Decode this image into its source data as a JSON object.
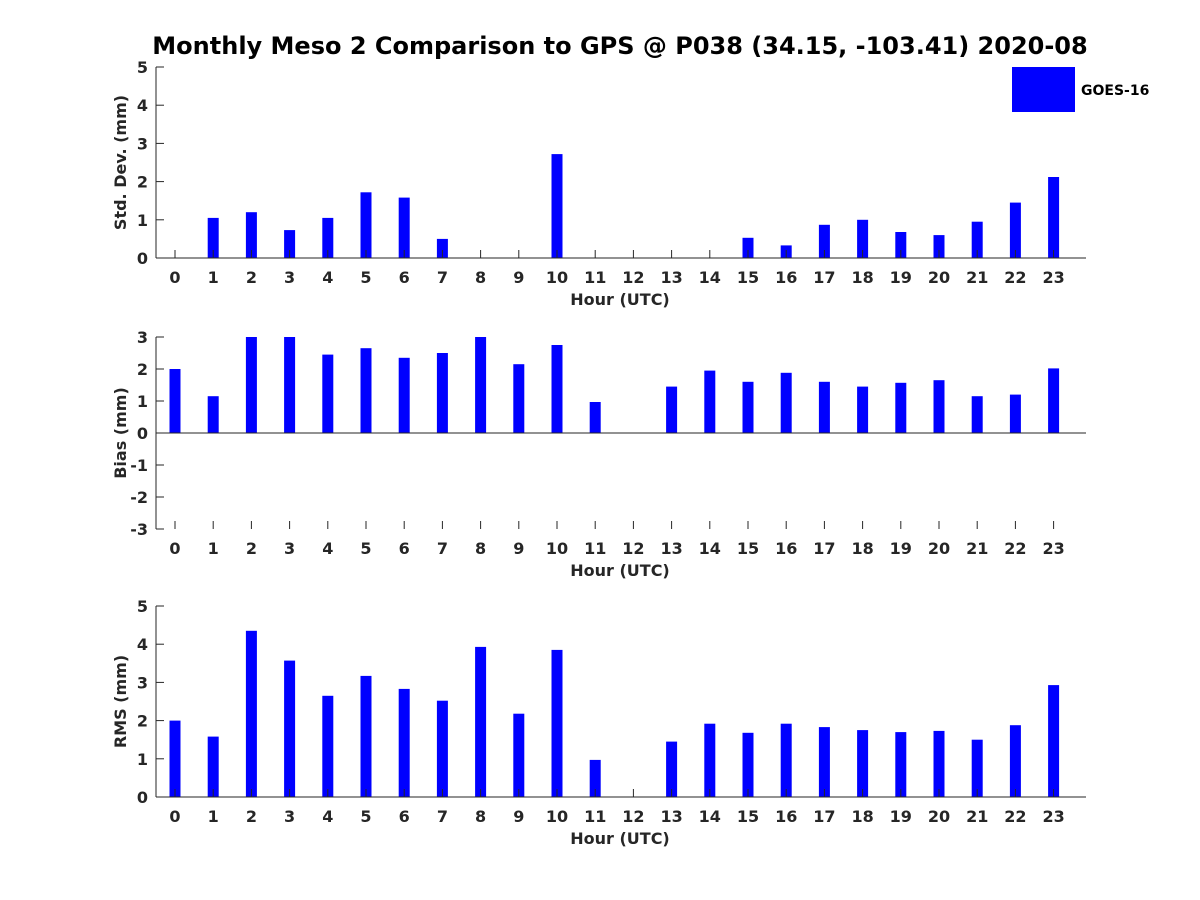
{
  "chart_data": [
    {
      "type": "bar",
      "panel": "std_dev",
      "title": "Monthly Meso 2 Comparison to GPS @ P038 (34.15, -103.41) 2020-08",
      "xlabel": "Hour (UTC)",
      "ylabel": "Std. Dev. (mm)",
      "categories": [
        "0",
        "1",
        "2",
        "3",
        "4",
        "5",
        "6",
        "7",
        "8",
        "9",
        "10",
        "11",
        "12",
        "13",
        "14",
        "15",
        "16",
        "17",
        "18",
        "19",
        "20",
        "21",
        "22",
        "23"
      ],
      "yticks": [
        "0",
        "1",
        "2",
        "3",
        "4",
        "5"
      ],
      "ylim": [
        0,
        5
      ],
      "series": [
        {
          "name": "GOES-16",
          "color": "#0000ff",
          "values": [
            null,
            1.05,
            1.2,
            0.73,
            1.05,
            1.72,
            1.58,
            0.5,
            null,
            null,
            2.72,
            null,
            null,
            null,
            null,
            0.53,
            0.33,
            0.87,
            1.0,
            0.68,
            0.6,
            0.95,
            1.45,
            2.12
          ]
        }
      ],
      "legend": {
        "entries": [
          "GOES-16"
        ],
        "location": "top-right"
      }
    },
    {
      "type": "bar",
      "panel": "bias",
      "xlabel": "Hour (UTC)",
      "ylabel": "Bias (mm)",
      "categories": [
        "0",
        "1",
        "2",
        "3",
        "4",
        "5",
        "6",
        "7",
        "8",
        "9",
        "10",
        "11",
        "12",
        "13",
        "14",
        "15",
        "16",
        "17",
        "18",
        "19",
        "20",
        "21",
        "22",
        "23"
      ],
      "yticks": [
        "-3",
        "-2",
        "-1",
        "0",
        "1",
        "2",
        "3"
      ],
      "ylim": [
        -3,
        3
      ],
      "series": [
        {
          "name": "GOES-16",
          "color": "#0000ff",
          "values": [
            2.0,
            1.15,
            3.0,
            3.0,
            2.45,
            2.65,
            2.35,
            2.5,
            3.0,
            2.15,
            2.75,
            0.97,
            null,
            1.45,
            1.95,
            1.6,
            1.88,
            1.6,
            1.45,
            1.57,
            1.65,
            1.15,
            1.2,
            2.02
          ]
        }
      ]
    },
    {
      "type": "bar",
      "panel": "rms",
      "xlabel": "Hour (UTC)",
      "ylabel": "RMS (mm)",
      "categories": [
        "0",
        "1",
        "2",
        "3",
        "4",
        "5",
        "6",
        "7",
        "8",
        "9",
        "10",
        "11",
        "12",
        "13",
        "14",
        "15",
        "16",
        "17",
        "18",
        "19",
        "20",
        "21",
        "22",
        "23"
      ],
      "yticks": [
        "0",
        "1",
        "2",
        "3",
        "4",
        "5"
      ],
      "ylim": [
        0,
        5
      ],
      "series": [
        {
          "name": "GOES-16",
          "color": "#0000ff",
          "values": [
            2.0,
            1.58,
            4.35,
            3.57,
            2.65,
            3.17,
            2.83,
            2.52,
            3.93,
            2.18,
            3.85,
            0.97,
            null,
            1.45,
            1.92,
            1.68,
            1.92,
            1.83,
            1.75,
            1.7,
            1.73,
            1.5,
            1.88,
            2.93
          ]
        }
      ]
    }
  ]
}
